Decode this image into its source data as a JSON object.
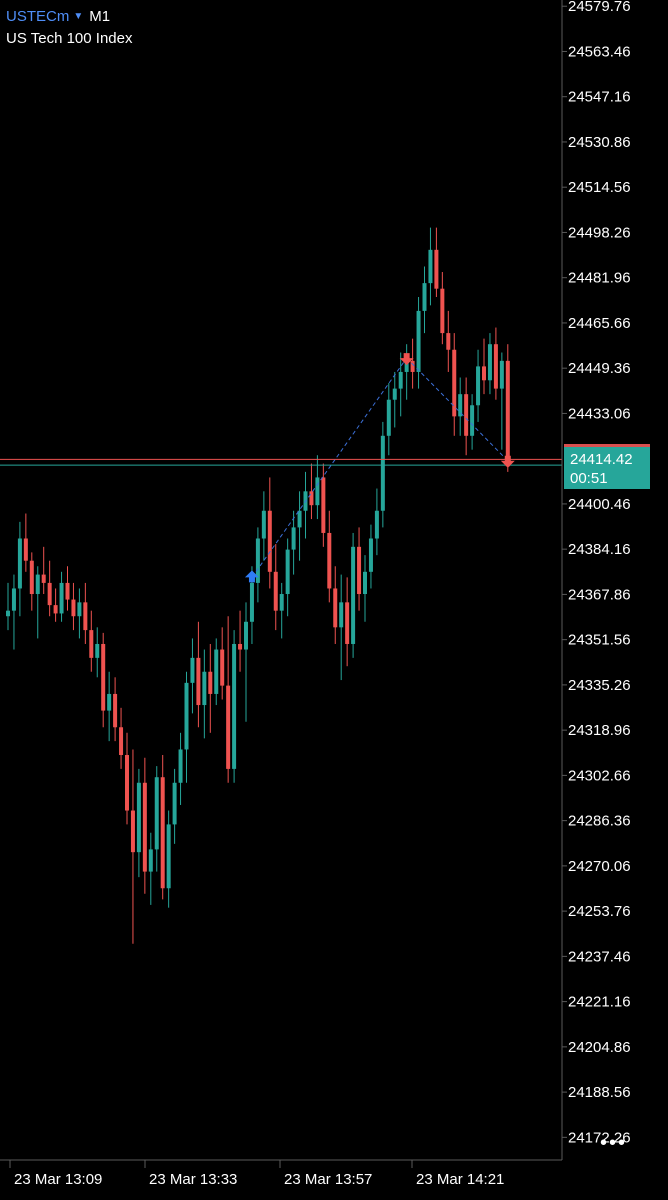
{
  "header": {
    "symbol": "USTECm",
    "timeframe": "M1",
    "description": "US Tech 100 Index"
  },
  "price_tag": {
    "price": "24414.42",
    "countdown": "00:51",
    "hidden_red_price": "24416.52"
  },
  "more_label": "•••",
  "colors": {
    "bull": "#26a69a",
    "bear": "#ef5350",
    "grid": "#5a5a5a",
    "bid_line": "#26a69a",
    "ask_line": "#ef5350",
    "trade_line": "#3b6fd6"
  },
  "chart_data": {
    "type": "candlestick",
    "symbol": "USTECm",
    "timeframe": "M1",
    "y_ticks": [
      24579.76,
      24563.46,
      24547.16,
      24530.86,
      24514.56,
      24498.26,
      24481.96,
      24465.66,
      24449.36,
      24433.06,
      24400.46,
      24384.16,
      24367.86,
      24351.56,
      24335.26,
      24318.96,
      24302.66,
      24286.36,
      24270.06,
      24253.76,
      24237.46,
      24221.16,
      24204.86,
      24188.56,
      24172.26
    ],
    "ylim": [
      24164.1,
      24582.0
    ],
    "x_ticks": [
      "23 Mar 13:09",
      "23 Mar 13:33",
      "23 Mar 13:57",
      "23 Mar 14:21"
    ],
    "bid": 24414.42,
    "ask": 24416.52,
    "trades": [
      {
        "side": "buy",
        "candle": 41,
        "price": 24374.0
      },
      {
        "side": "sell",
        "candle": 67,
        "price": 24453.0
      },
      {
        "side": "sell",
        "candle": 84,
        "price": 24416.0
      }
    ],
    "ohlc": [
      [
        24360,
        24372,
        24355,
        24362
      ],
      [
        24362,
        24375,
        24348,
        24370
      ],
      [
        24370,
        24394,
        24360,
        24388
      ],
      [
        24388,
        24397,
        24376,
        24380
      ],
      [
        24380,
        24383,
        24362,
        24368
      ],
      [
        24368,
        24378,
        24352,
        24375
      ],
      [
        24375,
        24385,
        24368,
        24372
      ],
      [
        24372,
        24380,
        24360,
        24364
      ],
      [
        24364,
        24370,
        24358,
        24361
      ],
      [
        24361,
        24376,
        24358,
        24372
      ],
      [
        24372,
        24378,
        24362,
        24366
      ],
      [
        24366,
        24372,
        24355,
        24360
      ],
      [
        24360,
        24370,
        24352,
        24365
      ],
      [
        24365,
        24372,
        24350,
        24355
      ],
      [
        24355,
        24362,
        24340,
        24345
      ],
      [
        24345,
        24356,
        24338,
        24350
      ],
      [
        24350,
        24354,
        24320,
        24326
      ],
      [
        24326,
        24340,
        24315,
        24332
      ],
      [
        24332,
        24338,
        24315,
        24320
      ],
      [
        24320,
        24327,
        24305,
        24310
      ],
      [
        24310,
        24318,
        24285,
        24290
      ],
      [
        24290,
        24312,
        24242,
        24275
      ],
      [
        24275,
        24305,
        24266,
        24300
      ],
      [
        24300,
        24309,
        24260,
        24268
      ],
      [
        24268,
        24282,
        24256,
        24276
      ],
      [
        24276,
        24306,
        24268,
        24302
      ],
      [
        24302,
        24310,
        24258,
        24262
      ],
      [
        24262,
        24290,
        24255,
        24285
      ],
      [
        24285,
        24305,
        24278,
        24300
      ],
      [
        24300,
        24318,
        24292,
        24312
      ],
      [
        24312,
        24340,
        24300,
        24336
      ],
      [
        24336,
        24352,
        24325,
        24345
      ],
      [
        24345,
        24358,
        24320,
        24328
      ],
      [
        24328,
        24348,
        24316,
        24340
      ],
      [
        24340,
        24350,
        24318,
        24332
      ],
      [
        24332,
        24352,
        24328,
        24348
      ],
      [
        24348,
        24356,
        24330,
        24335
      ],
      [
        24335,
        24360,
        24300,
        24305
      ],
      [
        24305,
        24355,
        24300,
        24350
      ],
      [
        24350,
        24362,
        24340,
        24348
      ],
      [
        24348,
        24365,
        24322,
        24358
      ],
      [
        24358,
        24378,
        24350,
        24372
      ],
      [
        24372,
        24392,
        24365,
        24388
      ],
      [
        24388,
        24405,
        24380,
        24398
      ],
      [
        24398,
        24410,
        24370,
        24376
      ],
      [
        24376,
        24386,
        24355,
        24362
      ],
      [
        24362,
        24372,
        24352,
        24368
      ],
      [
        24368,
        24388,
        24360,
        24384
      ],
      [
        24384,
        24398,
        24375,
        24392
      ],
      [
        24392,
        24405,
        24380,
        24398
      ],
      [
        24398,
        24412,
        24388,
        24405
      ],
      [
        24405,
        24415,
        24395,
        24400
      ],
      [
        24400,
        24418,
        24395,
        24410
      ],
      [
        24410,
        24415,
        24385,
        24390
      ],
      [
        24390,
        24398,
        24365,
        24370
      ],
      [
        24370,
        24378,
        24350,
        24356
      ],
      [
        24356,
        24375,
        24337,
        24365
      ],
      [
        24365,
        24374,
        24342,
        24350
      ],
      [
        24350,
        24390,
        24345,
        24385
      ],
      [
        24385,
        24392,
        24362,
        24368
      ],
      [
        24368,
        24382,
        24358,
        24376
      ],
      [
        24376,
        24393,
        24370,
        24388
      ],
      [
        24388,
        24406,
        24382,
        24398
      ],
      [
        24398,
        24430,
        24392,
        24425
      ],
      [
        24425,
        24444,
        24418,
        24438
      ],
      [
        24438,
        24448,
        24428,
        24442
      ],
      [
        24442,
        24455,
        24432,
        24448
      ],
      [
        24448,
        24458,
        24438,
        24452
      ],
      [
        24452,
        24460,
        24442,
        24448
      ],
      [
        24448,
        24475,
        24442,
        24470
      ],
      [
        24470,
        24486,
        24462,
        24480
      ],
      [
        24480,
        24500,
        24472,
        24492
      ],
      [
        24492,
        24500,
        24475,
        24478
      ],
      [
        24478,
        24484,
        24458,
        24462
      ],
      [
        24462,
        24470,
        24448,
        24456
      ],
      [
        24456,
        24462,
        24425,
        24432
      ],
      [
        24432,
        24446,
        24425,
        24440
      ],
      [
        24440,
        24446,
        24418,
        24425
      ],
      [
        24425,
        24440,
        24420,
        24436
      ],
      [
        24436,
        24456,
        24430,
        24450
      ],
      [
        24450,
        24460,
        24440,
        24445
      ],
      [
        24445,
        24462,
        24440,
        24458
      ],
      [
        24458,
        24464,
        24438,
        24442
      ],
      [
        24442,
        24455,
        24420,
        24452
      ],
      [
        24452,
        24458,
        24412,
        24414
      ]
    ]
  }
}
